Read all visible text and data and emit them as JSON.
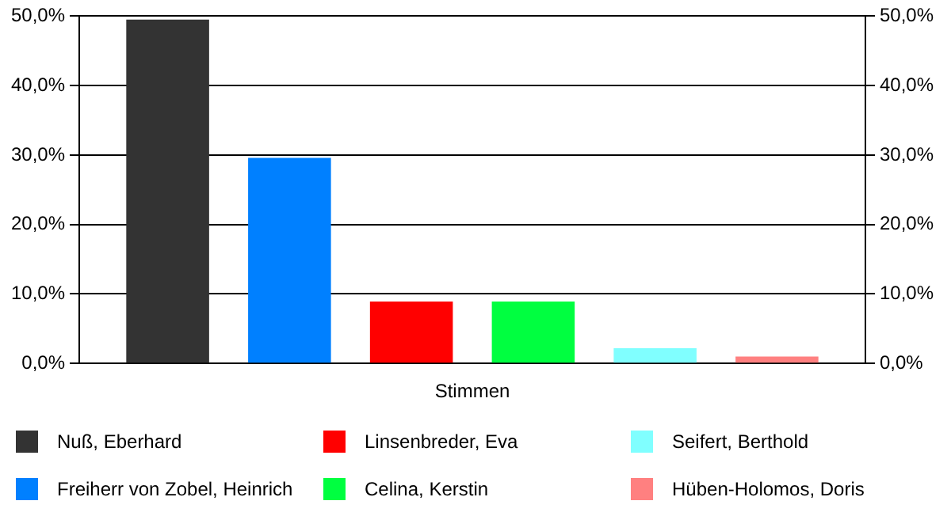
{
  "chart_data": {
    "type": "bar",
    "categories": [
      "Stimmen"
    ],
    "series": [
      {
        "name": "Nuß, Eberhard",
        "color": "#333333",
        "values": [
          49.5
        ]
      },
      {
        "name": "Freiherr von Zobel, Heinrich",
        "color": "#0080ff",
        "values": [
          29.6
        ]
      },
      {
        "name": "Linsenbreder, Eva",
        "color": "#ff0000",
        "values": [
          8.9
        ]
      },
      {
        "name": "Celina, Kerstin",
        "color": "#00ff40",
        "values": [
          8.9
        ]
      },
      {
        "name": "Seifert, Berthold",
        "color": "#80ffff",
        "values": [
          2.2
        ]
      },
      {
        "name": "Hüben-Holomos, Doris",
        "color": "#ff8080",
        "values": [
          1.0
        ]
      }
    ],
    "ylim": [
      0,
      50
    ],
    "yticks": [
      {
        "value": 0,
        "label": "0,0%"
      },
      {
        "value": 10,
        "label": "10,0%"
      },
      {
        "value": 20,
        "label": "20,0%"
      },
      {
        "value": 30,
        "label": "30,0%"
      },
      {
        "value": 40,
        "label": "40,0%"
      },
      {
        "value": 50,
        "label": "50,0%"
      }
    ],
    "grid": "y",
    "legend": "bottom"
  }
}
